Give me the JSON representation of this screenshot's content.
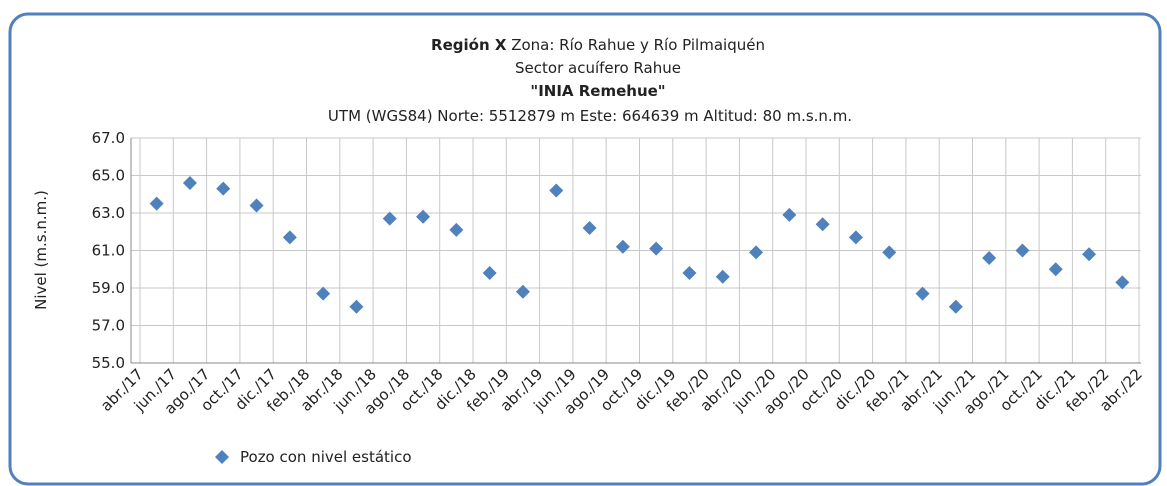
{
  "chart_data": {
    "type": "scatter",
    "title_parts": [
      "Región X",
      "Zona: Río Rahue y Río Pilmaiquén"
    ],
    "subtitle": "Sector acuífero Rahue",
    "station": "\"INIA Remehue\"",
    "location": "UTM (WGS84) Norte: 5512879 m Este: 664639 m  Altitud: 80 m.s.n.m.",
    "y_label": "Nivel (m.s.n.m.)",
    "categories": [
      "abr./17",
      "jun./17",
      "ago./17",
      "oct./17",
      "dic./17",
      "feb./18",
      "abr./18",
      "jun./18",
      "ago./18",
      "oct./18",
      "dic./18",
      "feb./19",
      "abr./19",
      "jun./19",
      "ago./19",
      "oct./19",
      "dic./19",
      "feb./20",
      "abr./20",
      "jun./20",
      "ago./20",
      "oct./20",
      "dic./20",
      "feb./21",
      "abr./21",
      "jun./21",
      "ago./21",
      "oct./21",
      "dic./21",
      "feb./22",
      "abr./22"
    ],
    "series": [
      {
        "name": "Pozo con nivel estático",
        "color": "#4f81bd",
        "values": [
          63.5,
          64.6,
          64.3,
          63.4,
          61.7,
          58.7,
          58.0,
          62.7,
          62.8,
          62.1,
          59.8,
          58.8,
          64.2,
          62.2,
          61.2,
          61.1,
          59.8,
          59.6,
          60.9,
          62.9,
          62.4,
          61.7,
          60.9,
          58.7,
          58.0,
          60.6,
          61.0,
          60.0,
          60.8,
          59.3,
          null
        ]
      }
    ],
    "ylim": [
      55,
      67
    ],
    "yticks": [
      {
        "value": 55,
        "label": "55.0"
      },
      {
        "value": 57,
        "label": "57.0"
      },
      {
        "value": 59,
        "label": "59.0"
      },
      {
        "value": 61,
        "label": "61.0"
      },
      {
        "value": 63,
        "label": "63.0"
      },
      {
        "value": 65,
        "label": "65.0"
      },
      {
        "value": 67,
        "label": "67.0"
      }
    ],
    "grid": true
  }
}
